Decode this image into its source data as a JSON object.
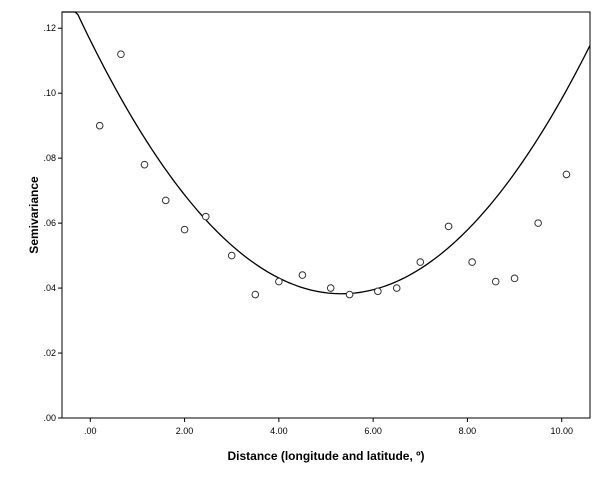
{
  "chart_data": {
    "type": "scatter",
    "title": "",
    "xlabel": "Distance (longitude and latitude, º)",
    "ylabel": "Semivariance",
    "xlim": [
      -0.6,
      10.6
    ],
    "ylim": [
      0.0,
      0.125
    ],
    "x_ticks": [
      0,
      2,
      4,
      6,
      8,
      10
    ],
    "x_tick_labels": [
      ".00",
      "2.00",
      "4.00",
      "6.00",
      "8.00",
      "10.00"
    ],
    "y_ticks": [
      0.0,
      0.02,
      0.04,
      0.06,
      0.08,
      0.1,
      0.12
    ],
    "y_tick_labels": [
      ".00",
      ".02",
      ".04",
      ".06",
      ".08",
      ".10",
      ".12"
    ],
    "grid": false,
    "legend": "none",
    "series": [
      {
        "kind": "scatter",
        "marker": "open-circle",
        "points": [
          {
            "x": 0.2,
            "y": 0.09
          },
          {
            "x": 0.65,
            "y": 0.112
          },
          {
            "x": 1.15,
            "y": 0.078
          },
          {
            "x": 1.6,
            "y": 0.067
          },
          {
            "x": 2.0,
            "y": 0.058
          },
          {
            "x": 2.45,
            "y": 0.062
          },
          {
            "x": 3.0,
            "y": 0.05
          },
          {
            "x": 3.5,
            "y": 0.038
          },
          {
            "x": 4.0,
            "y": 0.042
          },
          {
            "x": 4.5,
            "y": 0.044
          },
          {
            "x": 5.1,
            "y": 0.04
          },
          {
            "x": 5.5,
            "y": 0.038
          },
          {
            "x": 6.1,
            "y": 0.039
          },
          {
            "x": 6.5,
            "y": 0.04
          },
          {
            "x": 7.0,
            "y": 0.048
          },
          {
            "x": 7.6,
            "y": 0.059
          },
          {
            "x": 8.1,
            "y": 0.048
          },
          {
            "x": 8.6,
            "y": 0.042
          },
          {
            "x": 9.0,
            "y": 0.043
          },
          {
            "x": 9.5,
            "y": 0.06
          },
          {
            "x": 10.1,
            "y": 0.075
          }
        ]
      },
      {
        "kind": "line",
        "style": "quadratic-fit",
        "coefficients": {
          "a": 0.00275,
          "b": -0.0293,
          "c": 0.1163
        }
      }
    ],
    "colors": {
      "marker_stroke": "#333333",
      "line": "#000000",
      "axis": "#000000",
      "background": "#ffffff"
    }
  }
}
